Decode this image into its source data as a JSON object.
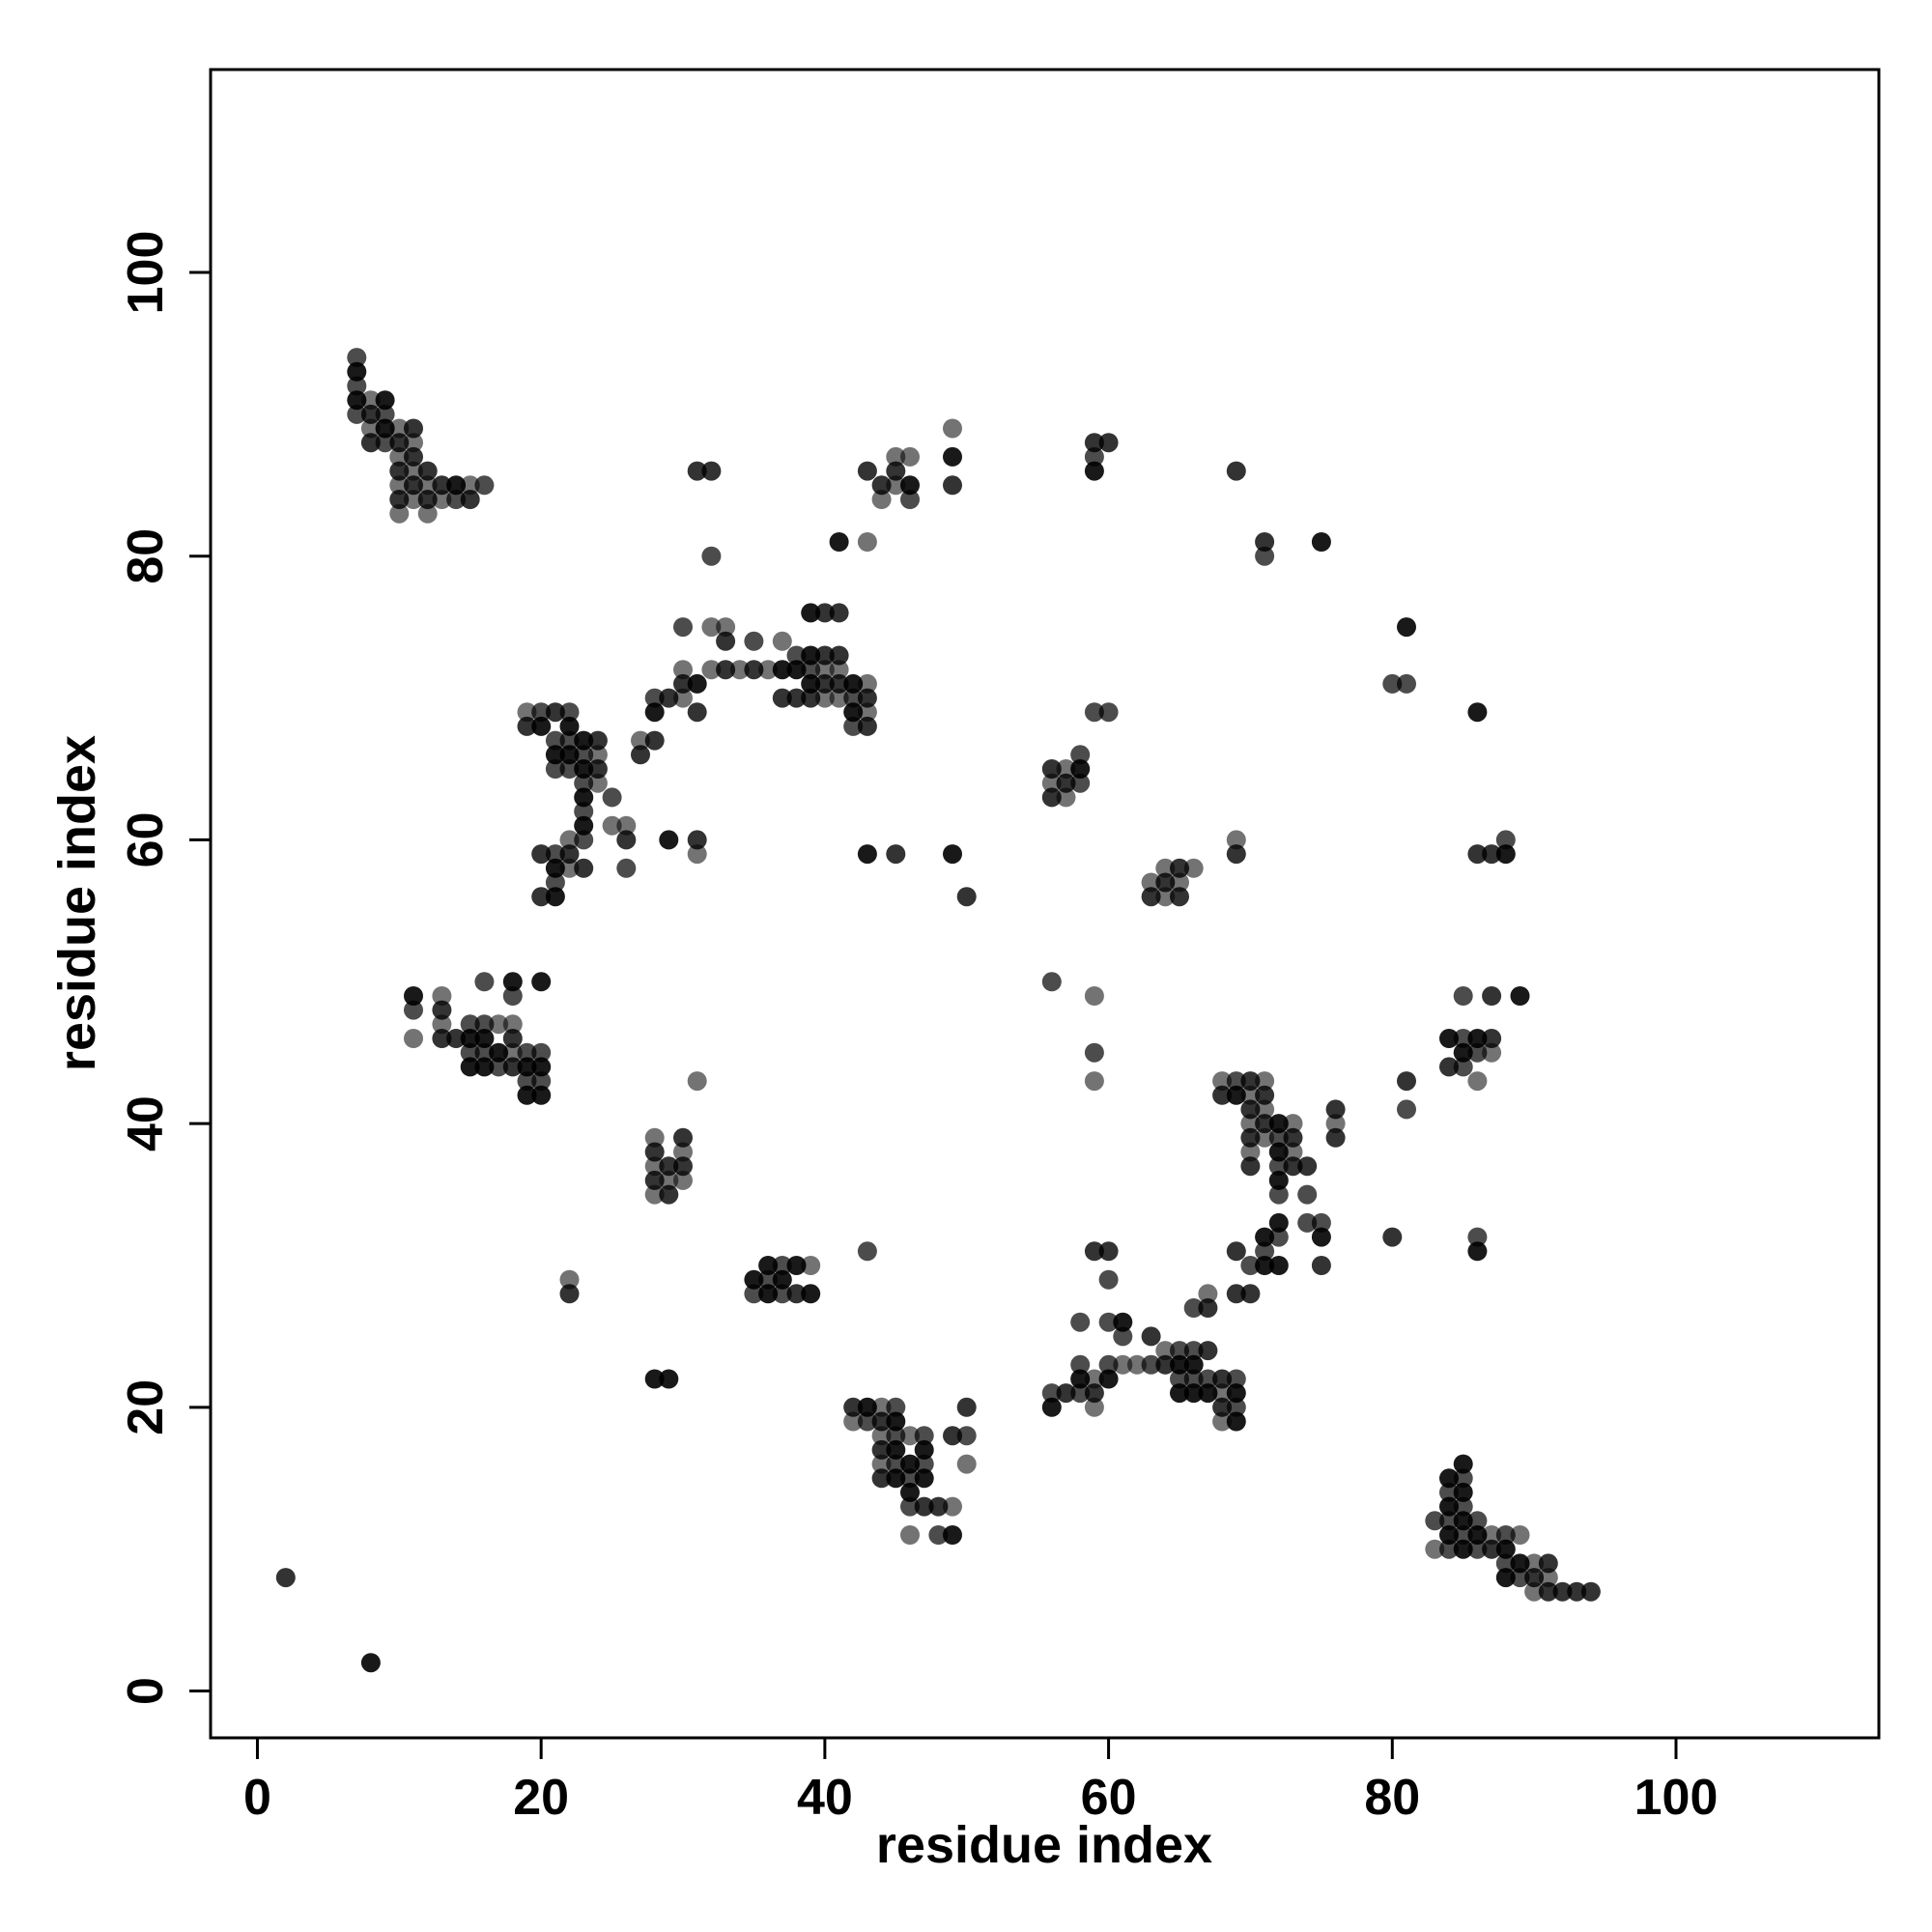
{
  "chart_data": {
    "type": "scatter",
    "title": "",
    "xlabel": "residue index",
    "ylabel": "residue index",
    "xlim": [
      -3.3,
      114.3
    ],
    "ylim": [
      -3.3,
      114.3
    ],
    "xticks": [
      0,
      20,
      40,
      60,
      80,
      100
    ],
    "yticks": [
      0,
      20,
      40,
      60,
      80,
      100
    ],
    "grid": false,
    "legend": "none",
    "marker_color": "#3a3a3a",
    "points": [
      [
        2,
        8
      ],
      [
        8,
        2
      ],
      [
        7,
        94
      ],
      [
        7,
        93
      ],
      [
        7,
        92
      ],
      [
        7,
        91
      ],
      [
        7,
        90
      ],
      [
        8,
        91
      ],
      [
        8,
        90
      ],
      [
        8,
        89
      ],
      [
        8,
        88
      ],
      [
        9,
        91
      ],
      [
        9,
        90
      ],
      [
        9,
        89
      ],
      [
        9,
        88
      ],
      [
        10,
        89
      ],
      [
        10,
        88
      ],
      [
        10,
        87
      ],
      [
        10,
        86
      ],
      [
        10,
        85
      ],
      [
        10,
        84
      ],
      [
        10,
        83
      ],
      [
        11,
        89
      ],
      [
        11,
        88
      ],
      [
        11,
        87
      ],
      [
        11,
        86
      ],
      [
        11,
        85
      ],
      [
        11,
        84
      ],
      [
        12,
        86
      ],
      [
        12,
        85
      ],
      [
        12,
        84
      ],
      [
        12,
        83
      ],
      [
        13,
        85
      ],
      [
        13,
        84
      ],
      [
        14,
        85
      ],
      [
        14,
        84
      ],
      [
        15,
        85
      ],
      [
        15,
        84
      ],
      [
        16,
        85
      ],
      [
        31,
        86
      ],
      [
        32,
        86
      ],
      [
        32,
        80
      ],
      [
        30,
        75
      ],
      [
        32,
        75
      ],
      [
        33,
        75
      ],
      [
        33,
        74
      ],
      [
        35,
        74
      ],
      [
        37,
        74
      ],
      [
        38,
        73
      ],
      [
        38,
        72
      ],
      [
        39,
        76
      ],
      [
        39,
        73
      ],
      [
        39,
        72
      ],
      [
        39,
        71
      ],
      [
        40,
        76
      ],
      [
        40,
        73
      ],
      [
        40,
        72
      ],
      [
        40,
        71
      ],
      [
        40,
        70
      ],
      [
        41,
        76
      ],
      [
        41,
        73
      ],
      [
        41,
        72
      ],
      [
        41,
        71
      ],
      [
        41,
        70
      ],
      [
        42,
        71
      ],
      [
        42,
        70
      ],
      [
        43,
        71
      ],
      [
        43,
        70
      ],
      [
        43,
        69
      ],
      [
        43,
        68
      ],
      [
        42,
        69
      ],
      [
        42,
        68
      ],
      [
        37,
        72
      ],
      [
        37,
        70
      ],
      [
        38,
        70
      ],
      [
        39,
        70
      ],
      [
        36,
        72
      ],
      [
        35,
        72
      ],
      [
        34,
        72
      ],
      [
        33,
        72
      ],
      [
        32,
        72
      ],
      [
        31,
        71
      ],
      [
        30,
        72
      ],
      [
        30,
        71
      ],
      [
        30,
        70
      ],
      [
        29,
        70
      ],
      [
        31,
        69
      ],
      [
        28,
        70
      ],
      [
        28,
        69
      ],
      [
        28,
        67
      ],
      [
        27,
        67
      ],
      [
        27,
        66
      ],
      [
        19,
        69
      ],
      [
        19,
        68
      ],
      [
        20,
        69
      ],
      [
        20,
        68
      ],
      [
        21,
        69
      ],
      [
        21,
        67
      ],
      [
        21,
        66
      ],
      [
        21,
        65
      ],
      [
        22,
        69
      ],
      [
        22,
        68
      ],
      [
        22,
        67
      ],
      [
        22,
        66
      ],
      [
        22,
        65
      ],
      [
        23,
        67
      ],
      [
        23,
        66
      ],
      [
        23,
        65
      ],
      [
        23,
        64
      ],
      [
        23,
        63
      ],
      [
        23,
        62
      ],
      [
        23,
        61
      ],
      [
        23,
        60
      ],
      [
        24,
        67
      ],
      [
        24,
        66
      ],
      [
        24,
        65
      ],
      [
        24,
        64
      ],
      [
        25,
        63
      ],
      [
        25,
        61
      ],
      [
        26,
        61
      ],
      [
        26,
        60
      ],
      [
        26,
        58
      ],
      [
        22,
        60
      ],
      [
        22,
        59
      ],
      [
        22,
        58
      ],
      [
        21,
        59
      ],
      [
        21,
        58
      ],
      [
        21,
        57
      ],
      [
        21,
        56
      ],
      [
        20,
        59
      ],
      [
        20,
        56
      ],
      [
        23,
        58
      ],
      [
        29,
        60
      ],
      [
        31,
        60
      ],
      [
        31,
        59
      ],
      [
        43,
        86
      ],
      [
        45,
        87
      ],
      [
        45,
        86
      ],
      [
        45,
        85
      ],
      [
        44,
        85
      ],
      [
        44,
        84
      ],
      [
        46,
        87
      ],
      [
        46,
        85
      ],
      [
        46,
        84
      ],
      [
        43,
        81
      ],
      [
        41,
        81
      ],
      [
        49,
        89
      ],
      [
        49,
        87
      ],
      [
        49,
        85
      ],
      [
        43,
        59
      ],
      [
        45,
        59
      ],
      [
        49,
        59
      ],
      [
        50,
        56
      ],
      [
        59,
        88
      ],
      [
        60,
        88
      ],
      [
        59,
        87
      ],
      [
        59,
        86
      ],
      [
        69,
        86
      ],
      [
        71,
        81
      ],
      [
        75,
        81
      ],
      [
        71,
        80
      ],
      [
        59,
        69
      ],
      [
        60,
        69
      ],
      [
        56,
        65
      ],
      [
        56,
        64
      ],
      [
        56,
        63
      ],
      [
        57,
        65
      ],
      [
        57,
        64
      ],
      [
        57,
        63
      ],
      [
        58,
        66
      ],
      [
        58,
        65
      ],
      [
        58,
        64
      ],
      [
        63,
        57
      ],
      [
        63,
        56
      ],
      [
        64,
        58
      ],
      [
        64,
        57
      ],
      [
        64,
        56
      ],
      [
        65,
        58
      ],
      [
        65,
        57
      ],
      [
        65,
        56
      ],
      [
        66,
        58
      ],
      [
        69,
        60
      ],
      [
        69,
        59
      ],
      [
        81,
        75
      ],
      [
        80,
        71
      ],
      [
        81,
        71
      ],
      [
        86,
        69
      ],
      [
        86,
        59
      ],
      [
        87,
        59
      ],
      [
        88,
        60
      ],
      [
        88,
        59
      ],
      [
        11,
        49
      ],
      [
        11,
        48
      ],
      [
        11,
        46
      ],
      [
        13,
        49
      ],
      [
        13,
        48
      ],
      [
        13,
        47
      ],
      [
        13,
        46
      ],
      [
        14,
        46
      ],
      [
        15,
        47
      ],
      [
        15,
        46
      ],
      [
        15,
        45
      ],
      [
        15,
        44
      ],
      [
        16,
        50
      ],
      [
        16,
        47
      ],
      [
        16,
        46
      ],
      [
        16,
        45
      ],
      [
        16,
        44
      ],
      [
        17,
        47
      ],
      [
        17,
        45
      ],
      [
        17,
        44
      ],
      [
        18,
        50
      ],
      [
        18,
        49
      ],
      [
        18,
        47
      ],
      [
        18,
        46
      ],
      [
        18,
        45
      ],
      [
        18,
        44
      ],
      [
        19,
        45
      ],
      [
        19,
        44
      ],
      [
        19,
        43
      ],
      [
        19,
        42
      ],
      [
        20,
        50
      ],
      [
        20,
        45
      ],
      [
        20,
        44
      ],
      [
        20,
        43
      ],
      [
        20,
        42
      ],
      [
        31,
        43
      ],
      [
        28,
        39
      ],
      [
        28,
        38
      ],
      [
        28,
        37
      ],
      [
        28,
        36
      ],
      [
        28,
        35
      ],
      [
        29,
        37
      ],
      [
        29,
        36
      ],
      [
        29,
        35
      ],
      [
        30,
        39
      ],
      [
        30,
        38
      ],
      [
        30,
        37
      ],
      [
        30,
        36
      ],
      [
        22,
        29
      ],
      [
        22,
        28
      ],
      [
        28,
        22
      ],
      [
        29,
        22
      ],
      [
        35,
        29
      ],
      [
        35,
        28
      ],
      [
        36,
        30
      ],
      [
        36,
        29
      ],
      [
        36,
        28
      ],
      [
        37,
        30
      ],
      [
        37,
        29
      ],
      [
        37,
        28
      ],
      [
        38,
        30
      ],
      [
        38,
        28
      ],
      [
        39,
        30
      ],
      [
        39,
        28
      ],
      [
        43,
        31
      ],
      [
        42,
        20
      ],
      [
        42,
        19
      ],
      [
        43,
        20
      ],
      [
        43,
        19
      ],
      [
        44,
        20
      ],
      [
        44,
        19
      ],
      [
        44,
        18
      ],
      [
        44,
        17
      ],
      [
        44,
        16
      ],
      [
        44,
        15
      ],
      [
        45,
        20
      ],
      [
        45,
        19
      ],
      [
        45,
        18
      ],
      [
        45,
        17
      ],
      [
        45,
        16
      ],
      [
        45,
        15
      ],
      [
        46,
        18
      ],
      [
        46,
        16
      ],
      [
        46,
        15
      ],
      [
        46,
        14
      ],
      [
        46,
        13
      ],
      [
        46,
        11
      ],
      [
        47,
        18
      ],
      [
        47,
        17
      ],
      [
        47,
        16
      ],
      [
        47,
        15
      ],
      [
        47,
        13
      ],
      [
        48,
        13
      ],
      [
        48,
        11
      ],
      [
        49,
        18
      ],
      [
        49,
        13
      ],
      [
        49,
        11
      ],
      [
        50,
        20
      ],
      [
        50,
        18
      ],
      [
        50,
        16
      ],
      [
        56,
        50
      ],
      [
        59,
        49
      ],
      [
        59,
        45
      ],
      [
        59,
        43
      ],
      [
        68,
        43
      ],
      [
        68,
        42
      ],
      [
        69,
        43
      ],
      [
        69,
        42
      ],
      [
        70,
        43
      ],
      [
        70,
        42
      ],
      [
        70,
        41
      ],
      [
        70,
        40
      ],
      [
        70,
        39
      ],
      [
        70,
        38
      ],
      [
        70,
        37
      ],
      [
        71,
        43
      ],
      [
        71,
        42
      ],
      [
        71,
        41
      ],
      [
        71,
        40
      ],
      [
        71,
        39
      ],
      [
        72,
        40
      ],
      [
        72,
        39
      ],
      [
        72,
        38
      ],
      [
        72,
        37
      ],
      [
        72,
        36
      ],
      [
        72,
        35
      ],
      [
        73,
        40
      ],
      [
        73,
        39
      ],
      [
        73,
        38
      ],
      [
        73,
        37
      ],
      [
        74,
        37
      ],
      [
        74,
        35
      ],
      [
        76,
        41
      ],
      [
        76,
        40
      ],
      [
        76,
        39
      ],
      [
        81,
        43
      ],
      [
        81,
        41
      ],
      [
        74,
        33
      ],
      [
        75,
        33
      ],
      [
        75,
        32
      ],
      [
        75,
        30
      ],
      [
        72,
        33
      ],
      [
        72,
        32
      ],
      [
        71,
        32
      ],
      [
        71,
        31
      ],
      [
        71,
        30
      ],
      [
        70,
        30
      ],
      [
        69,
        31
      ],
      [
        69,
        28
      ],
      [
        70,
        28
      ],
      [
        72,
        30
      ],
      [
        80,
        32
      ],
      [
        86,
        32
      ],
      [
        86,
        31
      ],
      [
        84,
        46
      ],
      [
        84,
        44
      ],
      [
        85,
        49
      ],
      [
        85,
        46
      ],
      [
        85,
        45
      ],
      [
        85,
        44
      ],
      [
        86,
        46
      ],
      [
        86,
        45
      ],
      [
        86,
        43
      ],
      [
        87,
        49
      ],
      [
        87,
        46
      ],
      [
        87,
        45
      ],
      [
        89,
        49
      ],
      [
        56,
        21
      ],
      [
        56,
        20
      ],
      [
        57,
        21
      ],
      [
        58,
        26
      ],
      [
        58,
        23
      ],
      [
        58,
        22
      ],
      [
        58,
        21
      ],
      [
        59,
        22
      ],
      [
        59,
        21
      ],
      [
        59,
        20
      ],
      [
        59,
        31
      ],
      [
        60,
        31
      ],
      [
        60,
        29
      ],
      [
        60,
        26
      ],
      [
        60,
        23
      ],
      [
        60,
        22
      ],
      [
        61,
        26
      ],
      [
        61,
        25
      ],
      [
        61,
        23
      ],
      [
        62,
        23
      ],
      [
        63,
        25
      ],
      [
        63,
        23
      ],
      [
        64,
        24
      ],
      [
        64,
        23
      ],
      [
        65,
        24
      ],
      [
        65,
        23
      ],
      [
        65,
        22
      ],
      [
        65,
        21
      ],
      [
        66,
        27
      ],
      [
        66,
        24
      ],
      [
        66,
        23
      ],
      [
        66,
        22
      ],
      [
        66,
        21
      ],
      [
        67,
        28
      ],
      [
        67,
        27
      ],
      [
        67,
        24
      ],
      [
        67,
        22
      ],
      [
        67,
        21
      ],
      [
        68,
        22
      ],
      [
        68,
        21
      ],
      [
        68,
        20
      ],
      [
        68,
        19
      ],
      [
        69,
        22
      ],
      [
        69,
        21
      ],
      [
        69,
        20
      ],
      [
        69,
        19
      ],
      [
        83,
        12
      ],
      [
        83,
        10
      ],
      [
        84,
        15
      ],
      [
        84,
        14
      ],
      [
        84,
        13
      ],
      [
        84,
        12
      ],
      [
        84,
        11
      ],
      [
        84,
        10
      ],
      [
        85,
        16
      ],
      [
        85,
        15
      ],
      [
        85,
        14
      ],
      [
        85,
        13
      ],
      [
        85,
        12
      ],
      [
        85,
        11
      ],
      [
        85,
        10
      ],
      [
        86,
        12
      ],
      [
        86,
        11
      ],
      [
        86,
        10
      ],
      [
        87,
        11
      ],
      [
        87,
        10
      ],
      [
        88,
        11
      ],
      [
        88,
        10
      ],
      [
        88,
        9
      ],
      [
        88,
        8
      ],
      [
        89,
        11
      ],
      [
        89,
        9
      ],
      [
        89,
        8
      ],
      [
        90,
        9
      ],
      [
        90,
        8
      ],
      [
        90,
        7
      ],
      [
        91,
        9
      ],
      [
        91,
        8
      ],
      [
        91,
        7
      ],
      [
        92,
        7
      ],
      [
        93,
        7
      ],
      [
        94,
        7
      ]
    ]
  }
}
